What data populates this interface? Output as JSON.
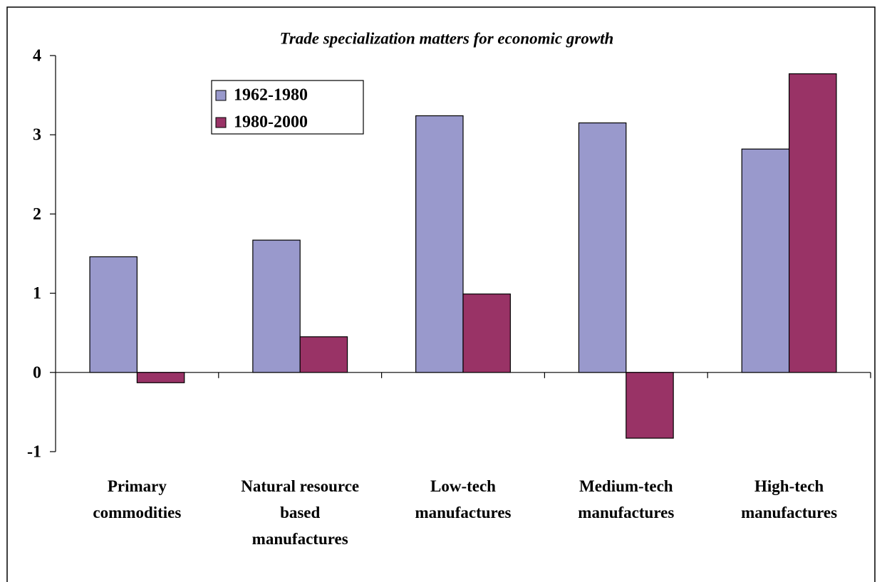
{
  "chart_data": {
    "type": "bar",
    "title": "Trade specialization matters for economic growth",
    "categories": [
      "Primary\ncommodities",
      "Natural resource\nbased\nmanufactures",
      "Low-tech\nmanufactures",
      "Medium-tech\nmanufactures",
      "High-tech\nmanufactures"
    ],
    "series": [
      {
        "name": "1962-1980",
        "color": "#9999cc",
        "values": [
          1.46,
          1.67,
          3.24,
          3.15,
          2.82
        ]
      },
      {
        "name": "1980-2000",
        "color": "#993366",
        "values": [
          -0.13,
          0.45,
          0.99,
          -0.83,
          3.77
        ]
      }
    ],
    "ylim": [
      -1,
      4
    ],
    "yticks": [
      -1,
      0,
      1,
      2,
      3,
      4
    ]
  }
}
